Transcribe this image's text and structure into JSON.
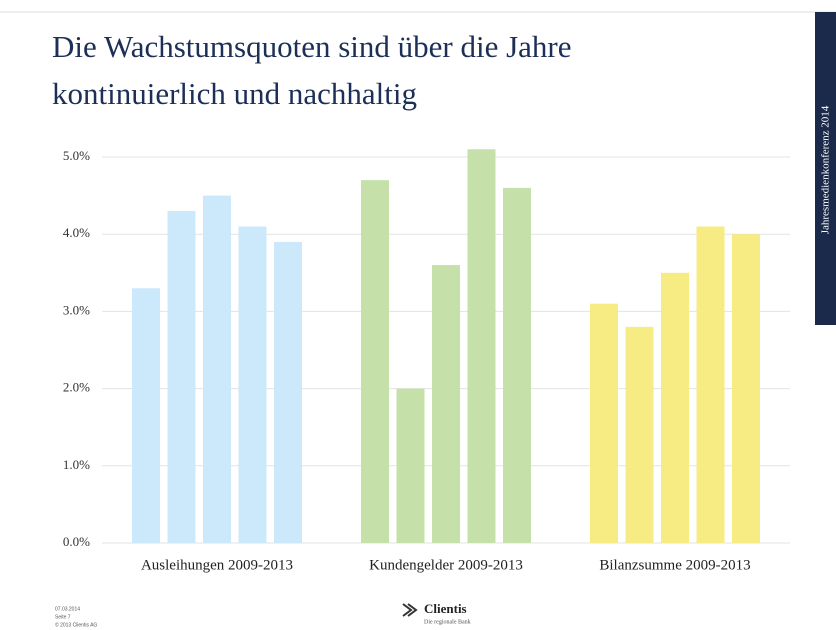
{
  "chart_data": {
    "type": "bar",
    "title": [
      "Die Wachstumsquoten sind über die Jahre",
      "kontinuierlich und nachhaltig"
    ],
    "groups": [
      {
        "label": "Ausleihungen 2009-2013",
        "color": "#cce8fb",
        "values": [
          3.3,
          4.3,
          4.5,
          4.1,
          3.9
        ]
      },
      {
        "label": "Kundengelder 2009-2013",
        "color": "#c5e0a8",
        "values": [
          4.7,
          2.0,
          3.6,
          5.1,
          4.6
        ]
      },
      {
        "label": "Bilanzsumme 2009-2013",
        "color": "#f7eb84",
        "values": [
          3.1,
          2.8,
          3.5,
          4.1,
          4.0
        ]
      }
    ],
    "ylim": [
      0,
      5.2
    ],
    "yticks": [
      {
        "value": 0,
        "label": "0.0%"
      },
      {
        "value": 1,
        "label": "1.0%"
      },
      {
        "value": 2,
        "label": "2.0%"
      },
      {
        "value": 3,
        "label": "3.0%"
      },
      {
        "value": 4,
        "label": "4.0%"
      },
      {
        "value": 5,
        "label": "5.0%"
      }
    ],
    "grid": true
  },
  "slide": {
    "side_label": "Jahresmedienkonferenz 2014",
    "footer": {
      "date": "07.03.2014",
      "page": "Seite 7",
      "copyright": "© 2013 Clientis AG"
    },
    "logo": {
      "name": "Clientis",
      "tagline": "Die regionale Bank"
    }
  }
}
